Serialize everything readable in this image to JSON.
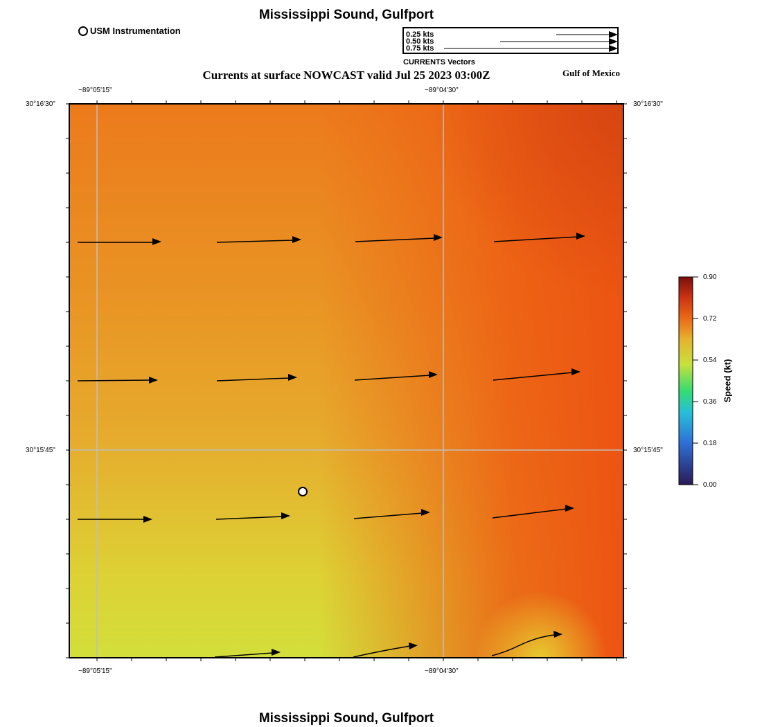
{
  "title_top": "Mississippi Sound, Gulfport",
  "title_bottom": "Mississippi Sound, Gulfport",
  "legend": {
    "station_label": "USM Instrumentation"
  },
  "vector_legend": {
    "title": "CURRENTS Vectors",
    "entries": [
      {
        "label": "0.25 kts",
        "speed": 0.25
      },
      {
        "label": "0.50 kts",
        "speed": 0.5
      },
      {
        "label": "0.75 kts",
        "speed": 0.75
      }
    ]
  },
  "subtitle": "Currents at surface NOWCAST valid Jul 25 2023 03:00Z",
  "region_label": "Gulf of Mexico",
  "axes": {
    "lon_labels": [
      "−89°05'15\"",
      "−89°04'30\""
    ],
    "lat_labels": [
      "30°16'30\"",
      "30°15'45\""
    ]
  },
  "colorbar": {
    "title": "Speed (kt)",
    "ticks": [
      "0.90",
      "0.72",
      "0.54",
      "0.36",
      "0.18",
      "0.00"
    ],
    "range": [
      0.0,
      0.9
    ]
  },
  "colors": {
    "low": "#d8e03a",
    "mid": "#e6a82e",
    "high": "#ee5a12",
    "max": "#d84412"
  }
}
